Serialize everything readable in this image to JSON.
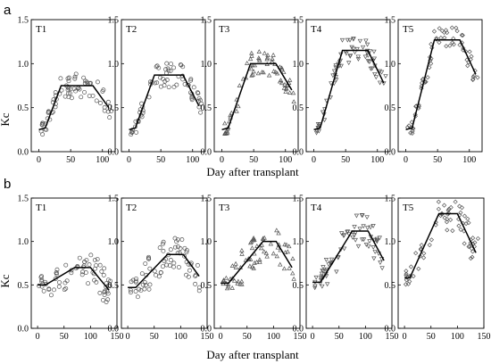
{
  "figure": {
    "rows": [
      {
        "letter": "a",
        "ylabel": "Kc",
        "xlabel": "Day after transplant"
      },
      {
        "letter": "b",
        "ylabel": "Kc",
        "xlabel": "Day after transplant"
      }
    ]
  },
  "chart_data": [
    {
      "type": "scatter",
      "row": 0,
      "title": "T1",
      "xlim": [
        -12,
        120
      ],
      "ylim": [
        0,
        1.5
      ],
      "xticks": [
        0,
        50,
        100
      ],
      "yticks": [
        0,
        0.5,
        1.0,
        1.5
      ],
      "fit_line": {
        "x": [
          0,
          10,
          35,
          85,
          110
        ],
        "y": [
          0.25,
          0.27,
          0.75,
          0.75,
          0.5
        ]
      }
    },
    {
      "type": "scatter",
      "row": 0,
      "title": "T2",
      "xlim": [
        -12,
        120
      ],
      "ylim": [
        0,
        1.5
      ],
      "xticks": [
        0,
        50,
        100
      ],
      "yticks": [
        0,
        0.5,
        1.0,
        1.5
      ],
      "fit_line": {
        "x": [
          0,
          10,
          40,
          85,
          110
        ],
        "y": [
          0.25,
          0.27,
          0.87,
          0.87,
          0.52
        ]
      }
    },
    {
      "type": "scatter",
      "row": 0,
      "title": "T3",
      "xlim": [
        -12,
        120
      ],
      "ylim": [
        0,
        1.5
      ],
      "xticks": [
        0,
        50,
        100
      ],
      "yticks": [
        0,
        0.5,
        1.0,
        1.5
      ],
      "fit_line": {
        "x": [
          0,
          10,
          45,
          85,
          110
        ],
        "y": [
          0.25,
          0.27,
          1.0,
          1.0,
          0.7
        ]
      }
    },
    {
      "type": "scatter",
      "row": 0,
      "title": "T4",
      "xlim": [
        -12,
        120
      ],
      "ylim": [
        0,
        1.5
      ],
      "xticks": [
        0,
        50,
        100
      ],
      "yticks": [
        0,
        0.5,
        1.0,
        1.5
      ],
      "fit_line": {
        "x": [
          0,
          10,
          45,
          85,
          110
        ],
        "y": [
          0.25,
          0.27,
          1.15,
          1.15,
          0.78
        ]
      }
    },
    {
      "type": "scatter",
      "row": 0,
      "title": "T5",
      "xlim": [
        -12,
        120
      ],
      "ylim": [
        0,
        1.5
      ],
      "xticks": [
        0,
        50,
        100
      ],
      "yticks": [
        0,
        0.5,
        1.0,
        1.5
      ],
      "fit_line": {
        "x": [
          0,
          10,
          45,
          85,
          110
        ],
        "y": [
          0.25,
          0.27,
          1.27,
          1.27,
          0.88
        ]
      }
    },
    {
      "type": "scatter",
      "row": 1,
      "title": "T1",
      "xlim": [
        -12,
        150
      ],
      "ylim": [
        0,
        1.5
      ],
      "xticks": [
        0,
        50,
        100,
        150
      ],
      "yticks": [
        0,
        0.5,
        1.0,
        1.5
      ],
      "fit_line": {
        "x": [
          0,
          15,
          70,
          100,
          135
        ],
        "y": [
          0.5,
          0.5,
          0.7,
          0.7,
          0.44
        ]
      }
    },
    {
      "type": "scatter",
      "row": 1,
      "title": "T2",
      "xlim": [
        -12,
        150
      ],
      "ylim": [
        0,
        1.5
      ],
      "xticks": [
        0,
        50,
        100,
        150
      ],
      "yticks": [
        0,
        0.5,
        1.0,
        1.5
      ],
      "fit_line": {
        "x": [
          0,
          15,
          75,
          105,
          135
        ],
        "y": [
          0.47,
          0.47,
          0.85,
          0.85,
          0.6
        ]
      }
    },
    {
      "type": "scatter",
      "row": 1,
      "title": "T3",
      "xlim": [
        -12,
        150
      ],
      "ylim": [
        0,
        1.5
      ],
      "xticks": [
        0,
        50,
        100,
        150
      ],
      "yticks": [
        0,
        0.5,
        1.0,
        1.5
      ],
      "fit_line": {
        "x": [
          0,
          15,
          80,
          105,
          135
        ],
        "y": [
          0.52,
          0.52,
          1.0,
          1.0,
          0.7
        ]
      }
    },
    {
      "type": "scatter",
      "row": 1,
      "title": "T4",
      "xlim": [
        -12,
        150
      ],
      "ylim": [
        0,
        1.5
      ],
      "xticks": [
        0,
        50,
        100,
        150
      ],
      "yticks": [
        0,
        0.5,
        1.0,
        1.5
      ],
      "fit_line": {
        "x": [
          0,
          15,
          75,
          105,
          135
        ],
        "y": [
          0.53,
          0.53,
          1.12,
          1.12,
          0.78
        ]
      }
    },
    {
      "type": "scatter",
      "row": 1,
      "title": "T5",
      "xlim": [
        -12,
        150
      ],
      "ylim": [
        0,
        1.5
      ],
      "xticks": [
        0,
        50,
        100,
        150
      ],
      "yticks": [
        0,
        0.5,
        1.0,
        1.5
      ],
      "fit_line": {
        "x": [
          0,
          10,
          65,
          100,
          135
        ],
        "y": [
          0.58,
          0.58,
          1.32,
          1.32,
          0.87
        ]
      }
    }
  ]
}
